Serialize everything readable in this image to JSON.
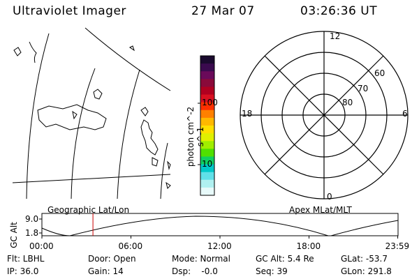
{
  "header": {
    "title": "Ultraviolet Imager",
    "date": "27 Mar 07",
    "time": "03:26:36 UT"
  },
  "colorbar": {
    "label": "photon cm^-2 s^-1",
    "ticks": [
      "100",
      "10"
    ],
    "colors": [
      "#1a0a2e",
      "#3a0a4e",
      "#6a0a5a",
      "#8a0a3a",
      "#b00020",
      "#d81020",
      "#ff3000",
      "#ff8000",
      "#ffb800",
      "#ffe000",
      "#e0f000",
      "#a0ee00",
      "#50e000",
      "#10d060",
      "#00c8c8",
      "#60e0e8",
      "#b0f0f0",
      "#e8fafa"
    ]
  },
  "polar_plot": {
    "hour_labels": {
      "top": "12",
      "left": "18",
      "right": "6",
      "bottom": "0"
    },
    "lat_labels": [
      "60",
      "70",
      "80"
    ]
  },
  "timeline": {
    "y_axis_label": "GC Alt",
    "y_ticks": [
      "9.0",
      "1.8"
    ],
    "left_title": "Geographic Lat/Lon",
    "right_title": "Apex MLat/MLT",
    "x_ticks": [
      "00:00",
      "06:00",
      "12:00",
      "18:00",
      "23:59"
    ],
    "current_marker_hour": 3.44,
    "marker_color": "#cc0000"
  },
  "info": {
    "filter": "Flt: LBHL",
    "ip": "IP: 36.0",
    "door": "Door: Open",
    "gain": "Gain: 14",
    "mode": "Mode: Normal",
    "dsp": "Dsp:    -0.0",
    "gc_alt": "GC Alt: 5.4 Re",
    "seq": "Seq: 39",
    "glat": "GLat: -53.7",
    "glon": "GLon: 291.8"
  }
}
